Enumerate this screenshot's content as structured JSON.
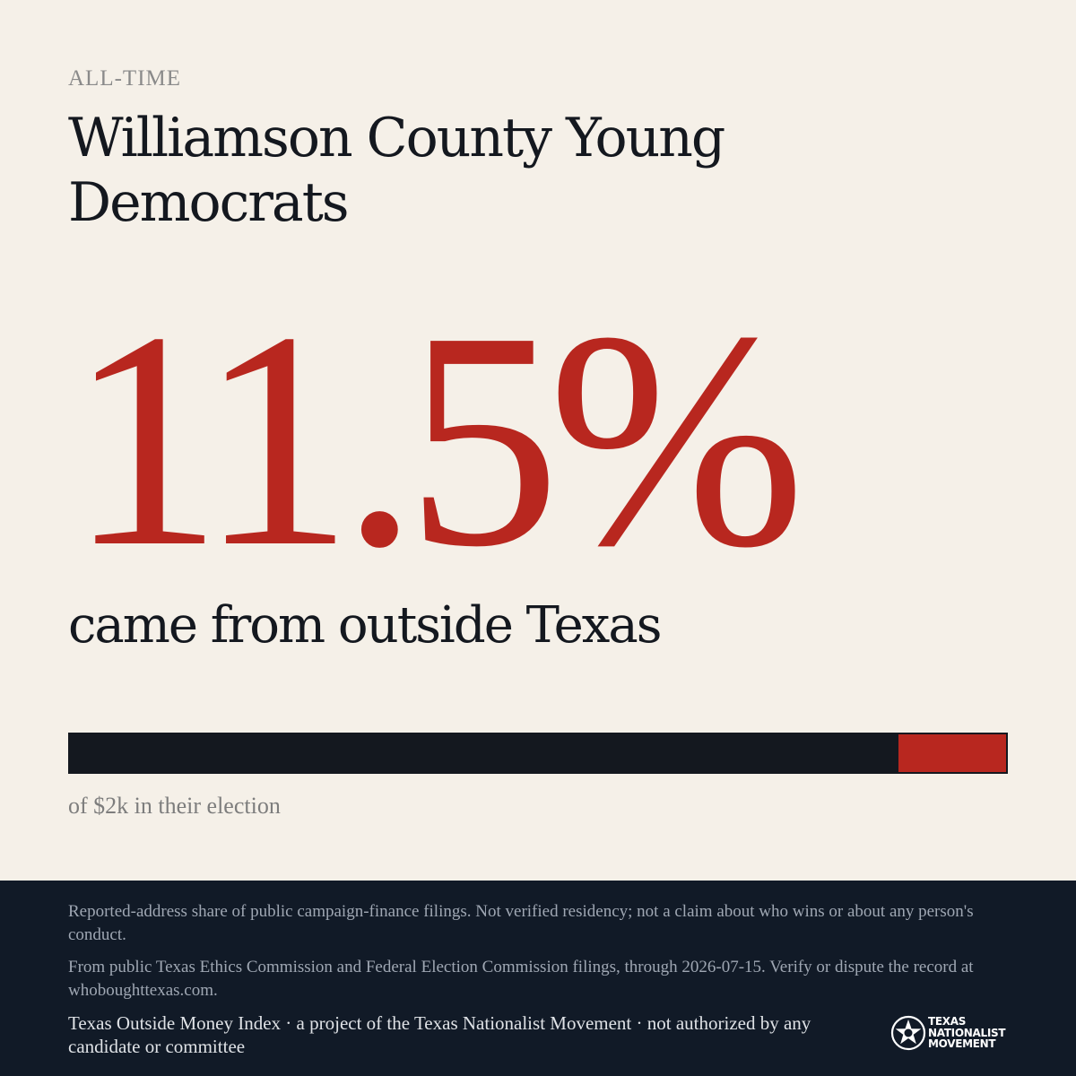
{
  "header": {
    "eyebrow": "ALL-TIME",
    "title": "Williamson County Young Democrats"
  },
  "stat": {
    "percent_label": "11.5%",
    "percent_value": 11.5,
    "subline": "came from outside Texas"
  },
  "bar": {
    "outside_share_percent": 11.5,
    "caption": "of $2k in their election"
  },
  "footer": {
    "disclaimer": "Reported-address share of public campaign-finance filings. Not verified residency; not a claim about who wins or about any person's conduct.",
    "source": "From public Texas Ethics Commission and Federal Election Commission filings, through 2026-07-15. Verify or dispute the record at whoboughttexas.com.",
    "attribution": "Texas Outside Money Index · a project of the Texas Nationalist Movement · not authorized by any candidate or committee"
  },
  "logo": {
    "line1": "TEXAS",
    "line2": "NATIONALIST",
    "line3": "MOVEMENT",
    "icon": "star-seal-icon"
  },
  "colors": {
    "background": "#f5f0e8",
    "accent": "#b8271f",
    "ink": "#14181f",
    "footer_bg": "#111a27"
  }
}
